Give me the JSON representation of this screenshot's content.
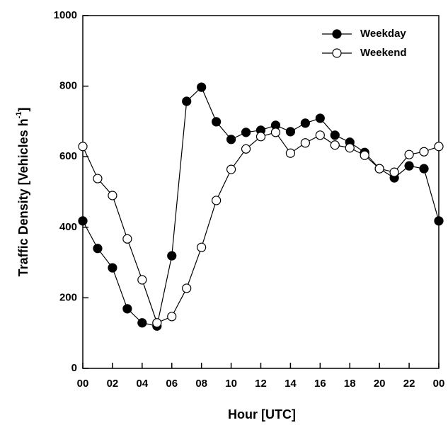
{
  "chart_data": {
    "type": "line",
    "x_label": "Hour [UTC]",
    "y_label": {
      "text": "Traffic Density [Vehicles h",
      "sup": "-1",
      "end": "]"
    },
    "x": [
      0,
      1,
      2,
      3,
      4,
      5,
      6,
      7,
      8,
      9,
      10,
      11,
      12,
      13,
      14,
      15,
      16,
      17,
      18,
      19,
      20,
      21,
      22,
      23,
      24
    ],
    "series": [
      {
        "name": "Weekday",
        "color": "#000000",
        "marker_fill": "#000000",
        "values": [
          418,
          340,
          285,
          169,
          129,
          120,
          319,
          757,
          797,
          699,
          649,
          669,
          675,
          689,
          671,
          695,
          709,
          661,
          641,
          612,
          566,
          540,
          574,
          566,
          418
        ]
      },
      {
        "name": "Weekend",
        "color": "#000000",
        "marker_fill": "#ffffff",
        "values": [
          629,
          538,
          490,
          367,
          251,
          129,
          147,
          227,
          343,
          476,
          564,
          622,
          657,
          669,
          610,
          639,
          661,
          633,
          625,
          604,
          566,
          556,
          606,
          614,
          629
        ]
      }
    ],
    "xlim": [
      0,
      24
    ],
    "xticks": [
      {
        "value": 0,
        "label": "00"
      },
      {
        "value": 2,
        "label": "02"
      },
      {
        "value": 4,
        "label": "04"
      },
      {
        "value": 6,
        "label": "06"
      },
      {
        "value": 8,
        "label": "08"
      },
      10,
      12,
      14,
      16,
      18,
      20,
      22,
      {
        "value": 24,
        "label": "00"
      }
    ],
    "ylim": [
      0,
      1000
    ],
    "yticks": [
      0,
      200,
      400,
      600,
      800,
      1000
    ],
    "legend": "upper-right",
    "grid": false
  }
}
